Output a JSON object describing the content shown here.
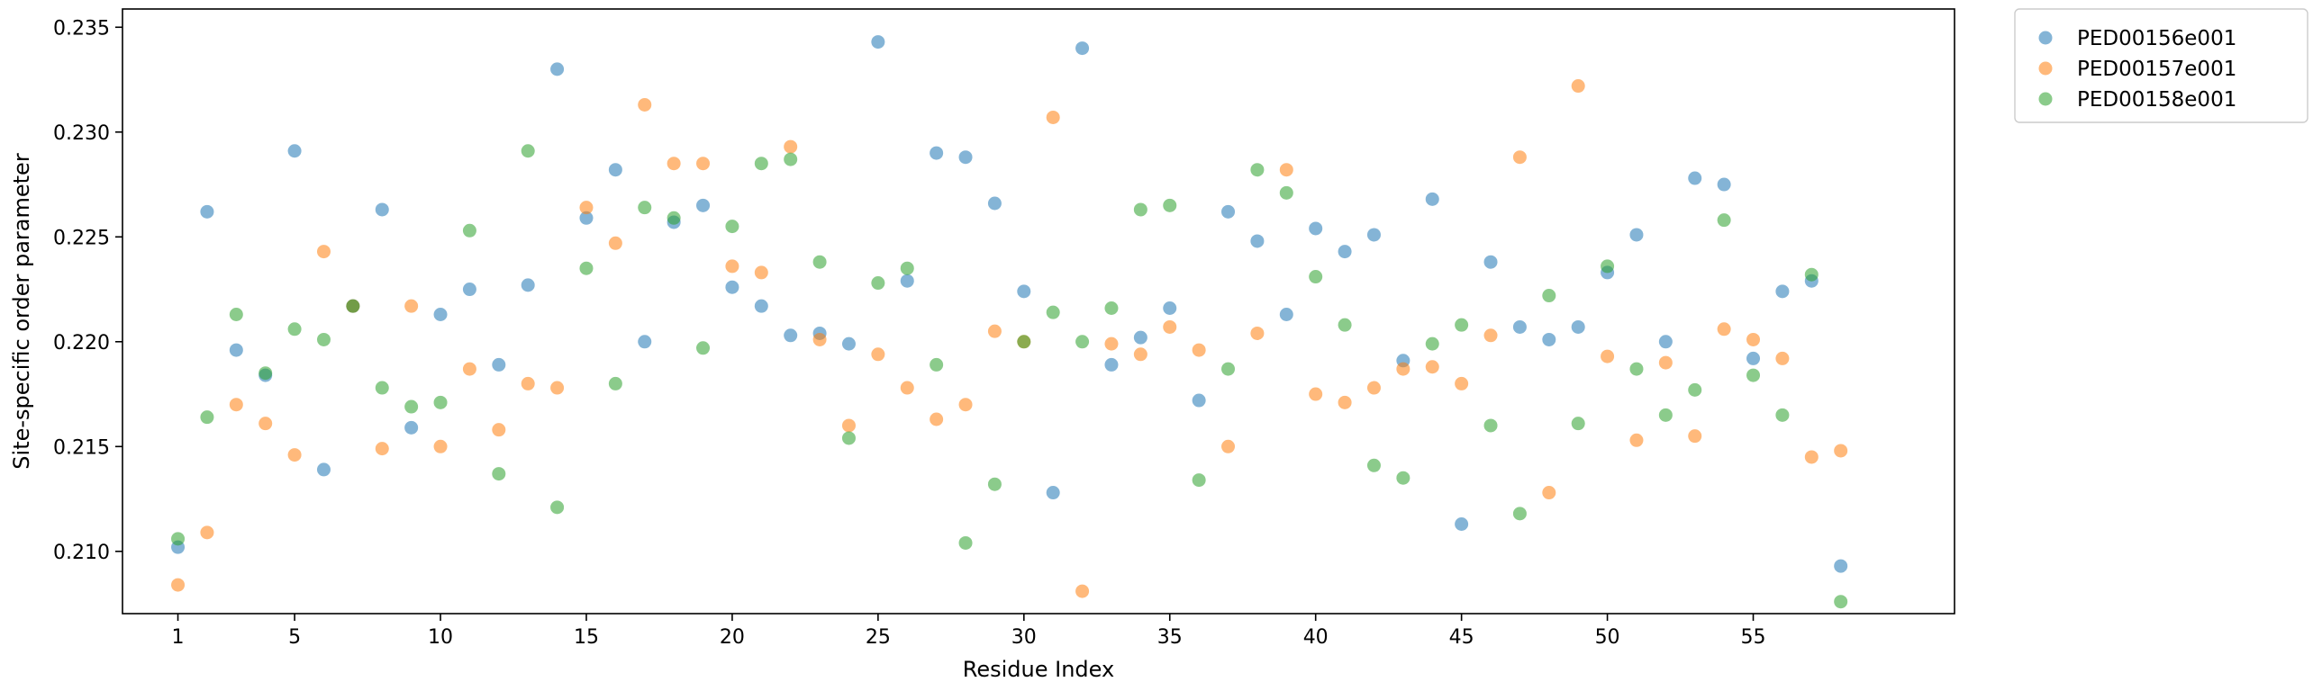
{
  "chart_data": {
    "type": "scatter",
    "title": "",
    "xlabel": "Residue Index",
    "ylabel": "Site-specific order parameter",
    "xlim": [
      -0.9,
      61.9
    ],
    "ylim": [
      0.20703,
      0.23587
    ],
    "xticks": [
      1,
      5,
      10,
      15,
      20,
      25,
      30,
      35,
      40,
      45,
      50,
      55
    ],
    "yticks": [
      0.21,
      0.215,
      0.22,
      0.225,
      0.23,
      0.235
    ],
    "ytick_labels": [
      "0.210",
      "0.215",
      "0.220",
      "0.225",
      "0.230",
      "0.235"
    ],
    "grid": false,
    "legend_placement": "outside upper right",
    "x": [
      1,
      2,
      3,
      4,
      5,
      6,
      7,
      8,
      9,
      10,
      11,
      12,
      13,
      14,
      15,
      16,
      17,
      18,
      19,
      20,
      21,
      22,
      23,
      24,
      25,
      26,
      27,
      28,
      29,
      30,
      31,
      32,
      33,
      34,
      35,
      36,
      37,
      38,
      39,
      40,
      41,
      42,
      43,
      44,
      45,
      46,
      47,
      48,
      49,
      50,
      51,
      52,
      53,
      54,
      55,
      56,
      57,
      58
    ],
    "series": [
      {
        "name": "PED00156e001",
        "color": "#1f77b4",
        "values": [
          0.2102,
          0.2262,
          0.2196,
          0.2184,
          0.2291,
          0.2139,
          0.2217,
          0.2263,
          0.2159,
          0.2213,
          0.2225,
          0.2189,
          0.2227,
          0.233,
          0.2259,
          0.2282,
          0.22,
          0.2257,
          0.2265,
          0.2226,
          0.2217,
          0.2203,
          0.2204,
          0.2199,
          0.2343,
          0.2229,
          0.229,
          0.2288,
          0.2266,
          0.2224,
          0.2128,
          0.234,
          0.2189,
          0.2202,
          0.2216,
          0.2172,
          0.2262,
          0.2248,
          0.2213,
          0.2254,
          0.2243,
          0.2251,
          0.2191,
          0.2268,
          0.2113,
          0.2238,
          0.2207,
          0.2201,
          0.2207,
          0.2233,
          0.2251,
          0.22,
          0.2278,
          0.2275,
          0.2192,
          0.2224,
          0.2229,
          0.2093
        ]
      },
      {
        "name": "PED00157e001",
        "color": "#ff7f0e",
        "values": [
          0.2084,
          0.2109,
          0.217,
          0.2161,
          0.2146,
          0.2243,
          0.2217,
          0.2149,
          0.2217,
          0.215,
          0.2187,
          0.2158,
          0.218,
          0.2178,
          0.2264,
          0.2247,
          0.2313,
          0.2285,
          0.2285,
          0.2236,
          0.2233,
          0.2293,
          0.2201,
          0.216,
          0.2194,
          0.2178,
          0.2163,
          0.217,
          0.2205,
          0.22,
          0.2307,
          0.2081,
          0.2199,
          0.2194,
          0.2207,
          0.2196,
          0.215,
          0.2204,
          0.2282,
          0.2175,
          0.2171,
          0.2178,
          0.2187,
          0.2188,
          0.218,
          0.2203,
          0.2288,
          0.2128,
          0.2322,
          0.2193,
          0.2153,
          0.219,
          0.2155,
          0.2206,
          0.2201,
          0.2192,
          0.2145,
          0.2148
        ]
      },
      {
        "name": "PED00158e001",
        "color": "#2ca02c",
        "values": [
          0.2106,
          0.2164,
          0.2213,
          0.2185,
          0.2206,
          0.2201,
          0.2217,
          0.2178,
          0.2169,
          0.2171,
          0.2253,
          0.2137,
          0.2291,
          0.2121,
          0.2235,
          0.218,
          0.2264,
          0.2259,
          0.2197,
          0.2255,
          0.2285,
          0.2287,
          0.2238,
          0.2154,
          0.2228,
          0.2235,
          0.2189,
          0.2104,
          0.2132,
          0.22,
          0.2214,
          0.22,
          0.2216,
          0.2263,
          0.2265,
          0.2134,
          0.2187,
          0.2282,
          0.2271,
          0.2231,
          0.2208,
          0.2141,
          0.2135,
          0.2199,
          0.2208,
          0.216,
          0.2118,
          0.2222,
          0.2161,
          0.2236,
          0.2187,
          0.2165,
          0.2177,
          0.2258,
          0.2184,
          0.2165,
          0.2232,
          0.2076
        ]
      }
    ]
  }
}
